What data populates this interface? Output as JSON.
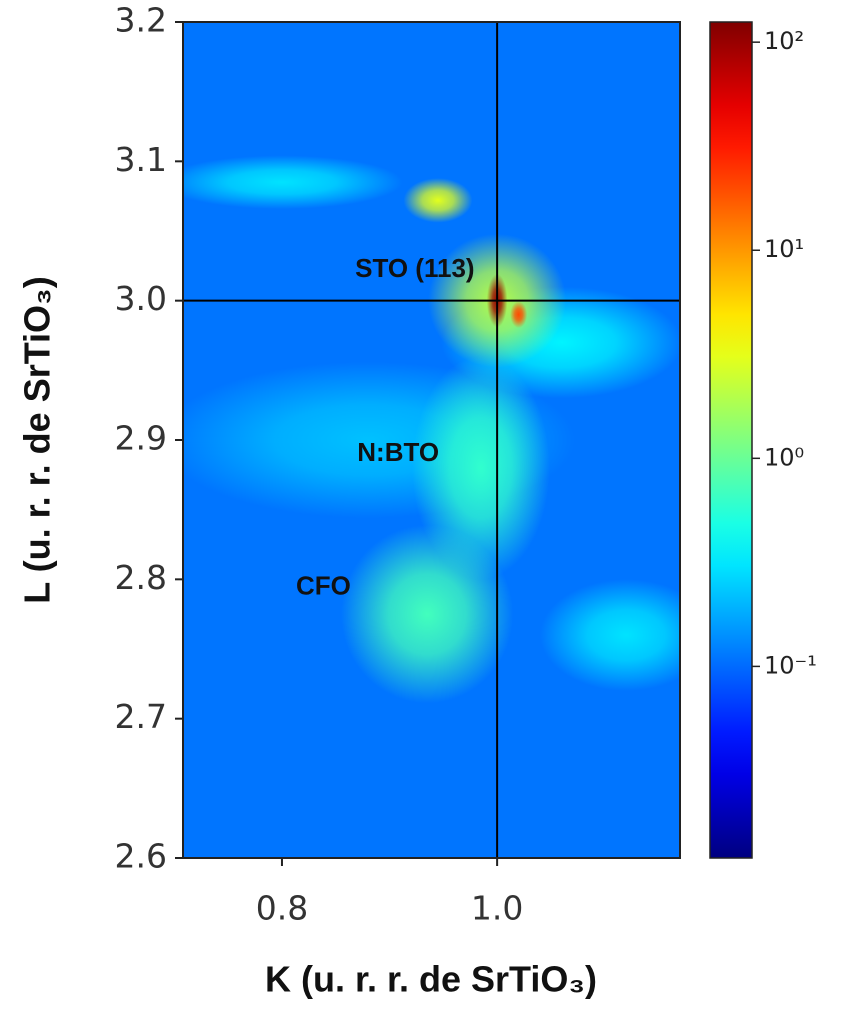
{
  "chart_data": {
    "type": "heatmap",
    "x_label": "K (u. r. r. de SrTiO₃)",
    "y_label": "L (u. r. r. de SrTiO₃)",
    "xlim": [
      0.708,
      1.17
    ],
    "ylim": [
      2.6,
      3.2
    ],
    "xticks": [
      0.8,
      {
        "value": 1,
        "label": "1.0"
      }
    ],
    "yticks": [
      2.6,
      2.7,
      2.8,
      2.9,
      {
        "value": 3,
        "label": "3.0"
      },
      3.1,
      3.2
    ],
    "colorbar": {
      "scale": "log",
      "lim": [
        0.012,
        125
      ],
      "colormap": "jet",
      "ticks": [
        {
          "value": 0.1,
          "label": "10⁻¹"
        },
        {
          "value": 1,
          "label": "10⁰"
        },
        {
          "value": 10,
          "label": "10¹"
        },
        {
          "value": 100,
          "label": "10²"
        }
      ]
    },
    "background": 0.11,
    "peaks": [
      {
        "x": 0.88,
        "y": 2.9,
        "value": 0.22,
        "dx": 0.12,
        "dy": 0.035
      },
      {
        "x": 1.06,
        "y": 2.97,
        "value": 0.35,
        "dx": 0.07,
        "dy": 0.025
      },
      {
        "x": 1.12,
        "y": 2.76,
        "value": 0.3,
        "dx": 0.05,
        "dy": 0.025
      },
      {
        "x": 0.8,
        "y": 3.085,
        "value": 0.3,
        "dx": 0.07,
        "dy": 0.012
      },
      {
        "x": 0.985,
        "y": 2.88,
        "value": 0.6,
        "dx": 0.04,
        "dy": 0.05
      },
      {
        "x": 0.935,
        "y": 2.775,
        "value": 0.7,
        "dx": 0.05,
        "dy": 0.04
      },
      {
        "x": 0.945,
        "y": 3.072,
        "value": 3,
        "dx": 0.02,
        "dy": 0.01
      },
      {
        "x": 1.0,
        "y": 3.0,
        "value": 2,
        "dx": 0.04,
        "dy": 0.03
      },
      {
        "x": 1.02,
        "y": 2.99,
        "value": 20,
        "dx": 0.005,
        "dy": 0.006
      },
      {
        "x": 1.0,
        "y": 3.0,
        "value": 100,
        "dx": 0.006,
        "dy": 0.012
      }
    ],
    "vlines": [
      1
    ],
    "hlines": [
      3
    ],
    "annotations": [
      {
        "text": "STO (113)",
        "x": 0.868,
        "y": 3.022
      },
      {
        "text": "N:BTO",
        "x": 0.87,
        "y": 2.89
      },
      {
        "text": "CFO",
        "x": 0.813,
        "y": 2.794
      }
    ]
  }
}
